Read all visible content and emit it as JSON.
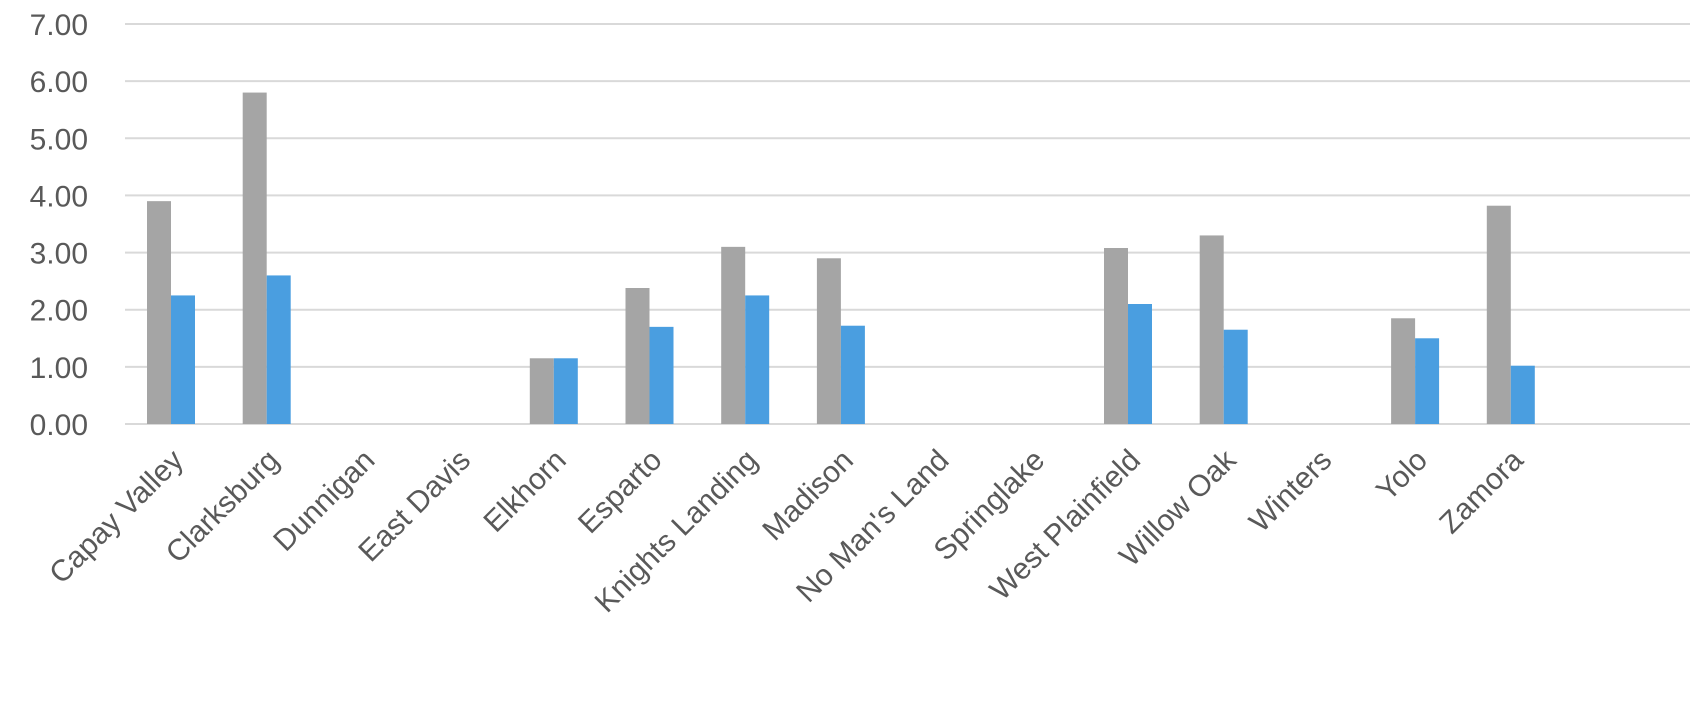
{
  "chart_data": {
    "type": "bar",
    "title": "",
    "xlabel": "",
    "ylabel": "",
    "ylim": [
      0,
      7
    ],
    "yticks": [
      "0.00",
      "1.00",
      "2.00",
      "3.00",
      "4.00",
      "5.00",
      "6.00",
      "7.00"
    ],
    "grid": true,
    "legend": "none",
    "categories": [
      "Capay Valley",
      "Clarksburg",
      "Dunnigan",
      "East Davis",
      "Elkhorn",
      "Esparto",
      "Knights Landing",
      "Madison",
      "No Man's Land",
      "Springlake",
      "West Plainfield",
      "Willow Oak",
      "Winters",
      "Yolo",
      "Zamora"
    ],
    "series": [
      {
        "color": "#a5a5a5",
        "values": [
          3.9,
          5.8,
          0,
          0,
          1.15,
          2.38,
          3.1,
          2.9,
          0,
          0,
          3.08,
          3.3,
          0,
          1.85,
          3.82
        ]
      },
      {
        "color": "#4a9ee0",
        "values": [
          2.25,
          2.6,
          0,
          0,
          1.15,
          1.7,
          2.25,
          1.72,
          0,
          0,
          2.1,
          1.65,
          0,
          1.5,
          1.02
        ]
      }
    ]
  }
}
